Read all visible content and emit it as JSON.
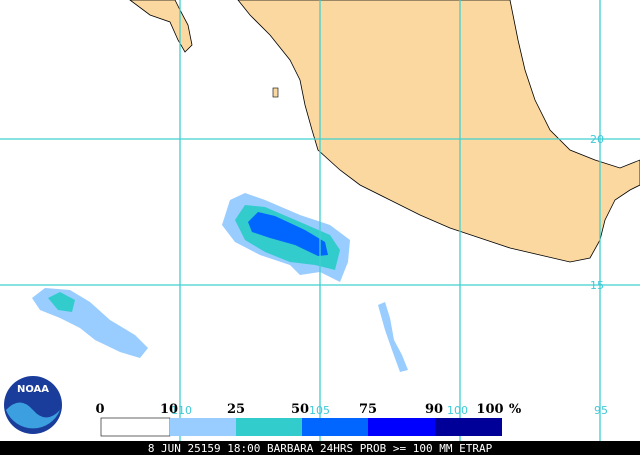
{
  "map": {
    "lat_labels": [
      "20",
      "15"
    ],
    "lon_labels": [
      "110",
      "105",
      "100",
      "95"
    ]
  },
  "legend": {
    "ticks": [
      "0",
      "10",
      "25",
      "50",
      "75",
      "90",
      "100"
    ],
    "unit": "%"
  },
  "logo": "NOAA",
  "caption": "8 JUN 25159 18:00 BARBARA 24HRS PROB >= 100 MM ETRAP"
}
